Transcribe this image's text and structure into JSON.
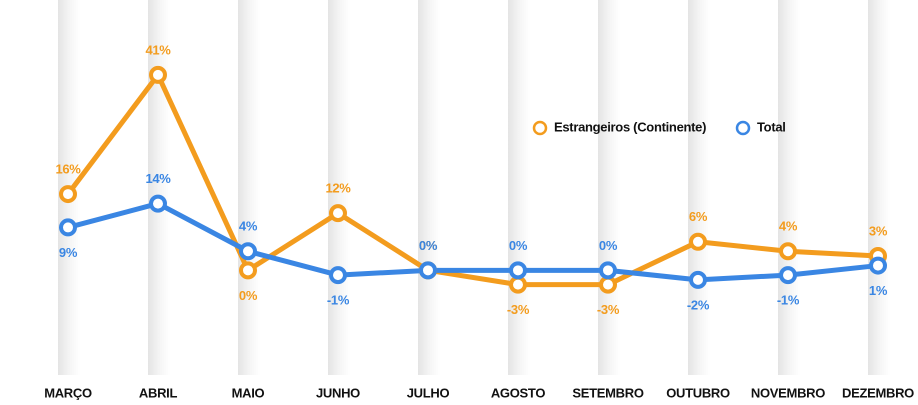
{
  "chart_data": {
    "type": "line",
    "categories": [
      "MARÇO",
      "ABRIL",
      "MAIO",
      "JUNHO",
      "JULHO",
      "AGOSTO",
      "SETEMBRO",
      "OUTUBRO",
      "NOVEMBRO",
      "DEZEMBRO"
    ],
    "series": [
      {
        "name": "Estrangeiros (Continente)",
        "color": "#f39c1e",
        "values": [
          16,
          41,
          0,
          12,
          0,
          -3,
          -3,
          6,
          4,
          3
        ],
        "value_labels": [
          "16%",
          "41%",
          "0%",
          "12%",
          "0%",
          "-3%",
          "-3%",
          "6%",
          "4%",
          "3%"
        ]
      },
      {
        "name": "Total",
        "color": "#3a86e3",
        "values": [
          9,
          14,
          4,
          -1,
          0,
          0,
          0,
          -2,
          -1,
          1
        ],
        "value_labels": [
          "9%",
          "14%",
          "4%",
          "-1%",
          "0%",
          "0%",
          "0%",
          "-2%",
          "-1%",
          "1%"
        ]
      }
    ],
    "ylim": [
      -10,
      50
    ],
    "legend": "top-right"
  }
}
